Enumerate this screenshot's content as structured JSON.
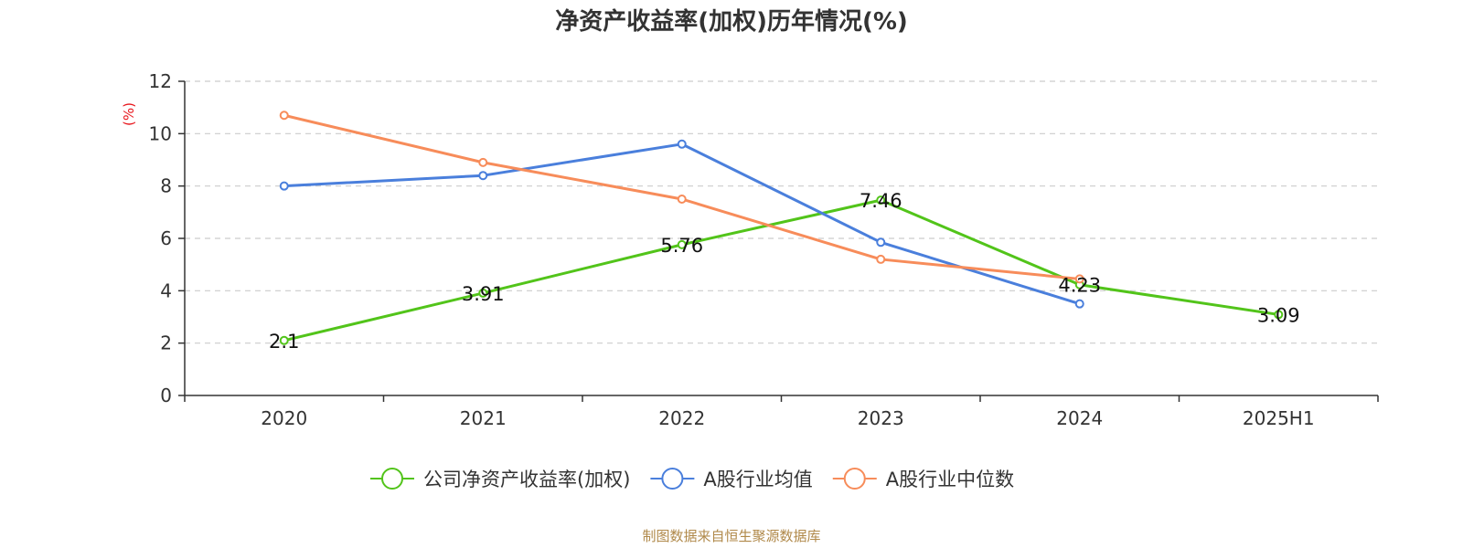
{
  "chart_data": {
    "type": "line",
    "title": "净资产收益率(加权)历年情况(%)",
    "ylabel": "(%)",
    "xlabel": "",
    "categories": [
      "2020",
      "2021",
      "2022",
      "2023",
      "2024",
      "2025H1"
    ],
    "ylim": [
      0,
      12
    ],
    "yticks": [
      0,
      2,
      4,
      6,
      8,
      10,
      12
    ],
    "grid": true,
    "legend_position": "bottom-center",
    "series": [
      {
        "name": "公司净资产收益率(加权)",
        "color": "#52c41a",
        "values": [
          2.1,
          3.91,
          5.76,
          7.46,
          4.23,
          3.09
        ],
        "labels": [
          "2.1",
          "3.91",
          "5.76",
          "7.46",
          "4.23",
          "3.09"
        ]
      },
      {
        "name": "A股行业均值",
        "color": "#4a7fdc",
        "values": [
          8.0,
          8.4,
          9.6,
          5.85,
          3.5,
          null
        ]
      },
      {
        "name": "A股行业中位数",
        "color": "#f78c5a",
        "values": [
          10.7,
          8.9,
          7.5,
          5.2,
          4.45,
          null
        ]
      }
    ]
  },
  "footer": {
    "source": "制图数据来自恒生聚源数据库"
  }
}
